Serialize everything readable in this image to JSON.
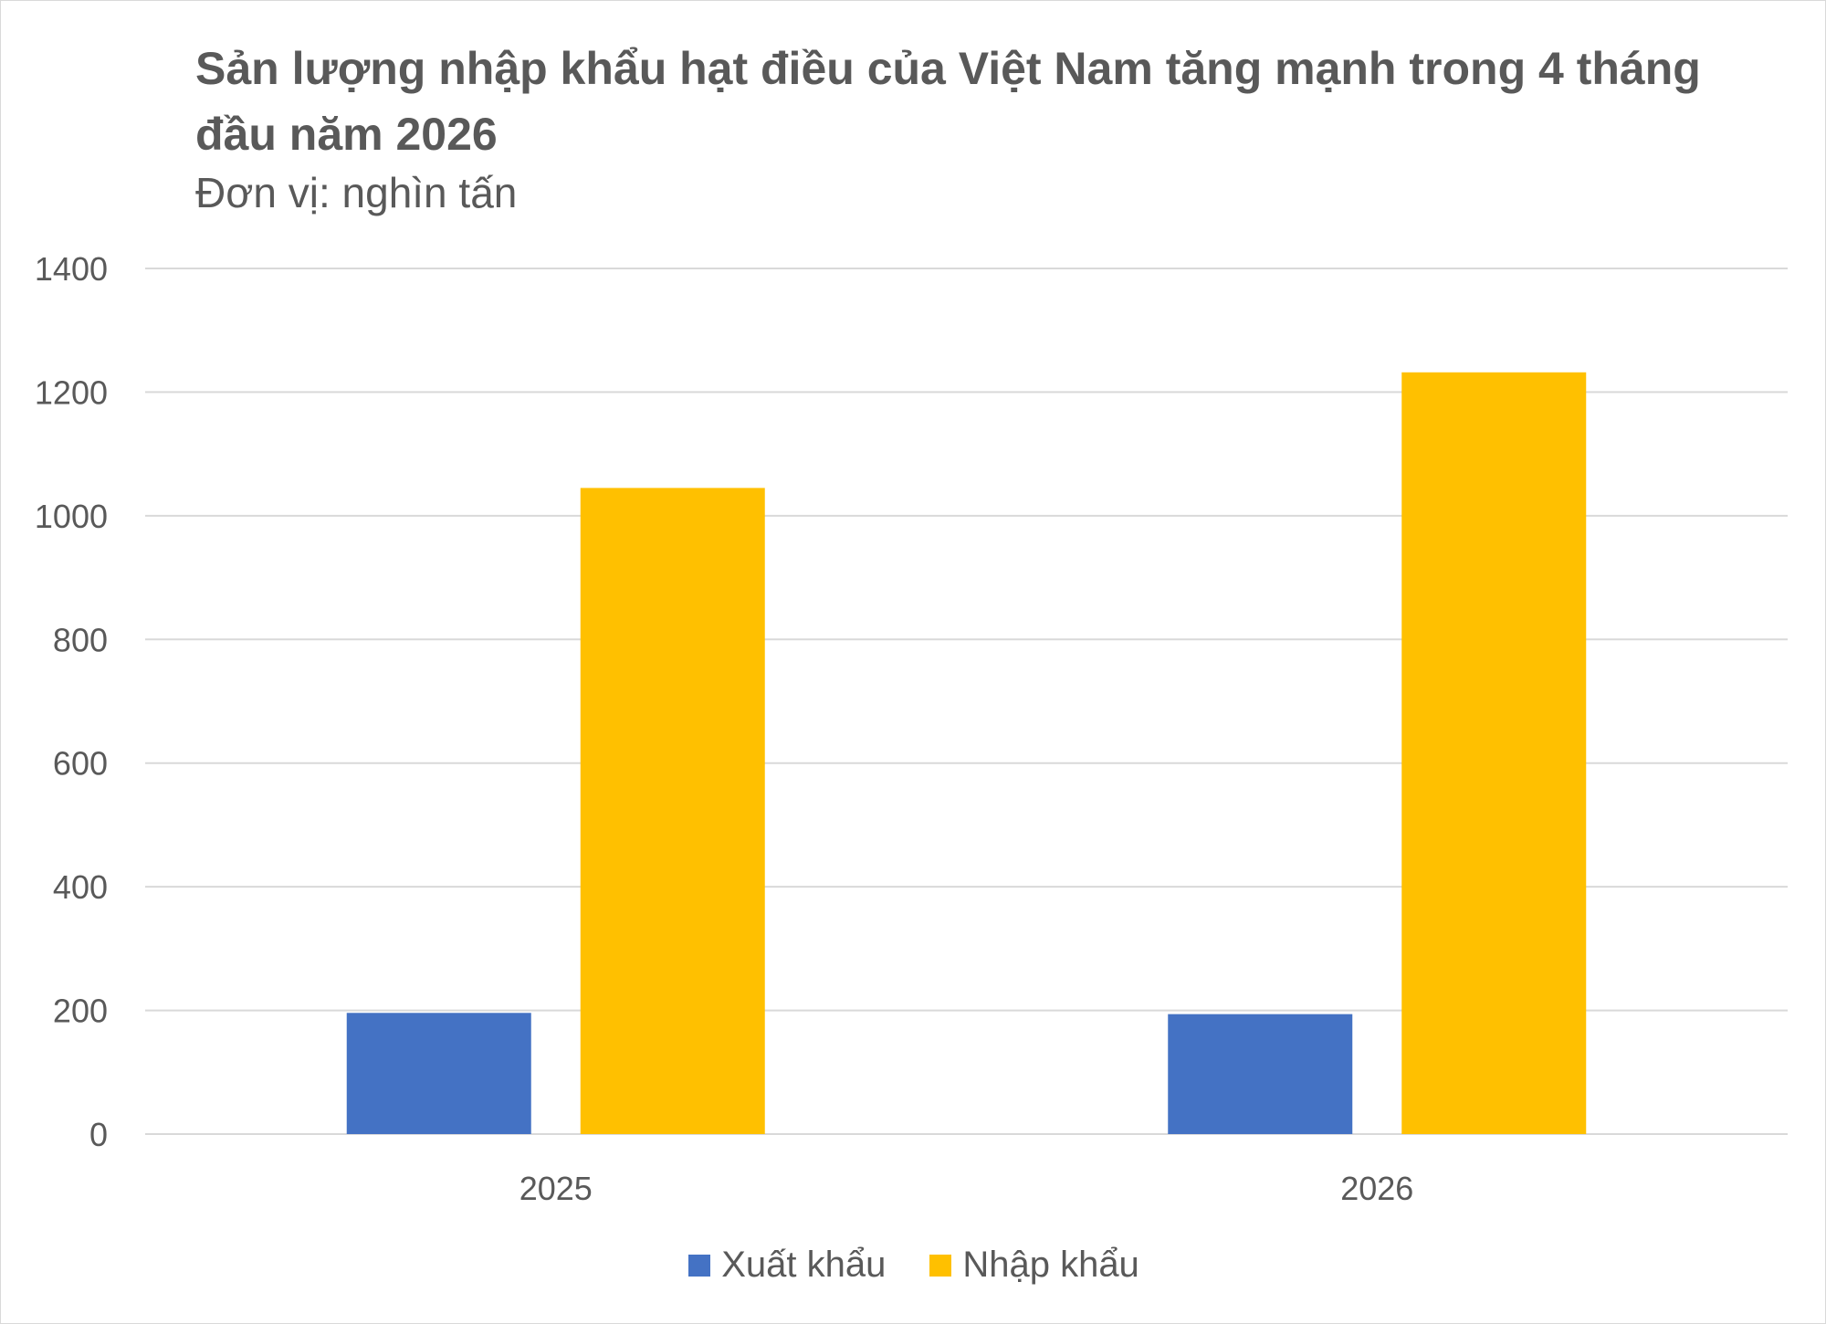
{
  "chart_data": {
    "type": "bar",
    "title": "Sản lượng nhập khẩu hạt điều của Việt Nam tăng mạnh trong 4 tháng đầu năm 2026",
    "subtitle": "Đơn vị: nghìn tấn",
    "categories": [
      "2025",
      "2026"
    ],
    "series": [
      {
        "name": "Xuất khẩu",
        "values": [
          196,
          194
        ],
        "color": "#4472C4"
      },
      {
        "name": "Nhập khẩu",
        "values": [
          1045,
          1232
        ],
        "color": "#FFC000"
      }
    ],
    "ylim": [
      0,
      1400
    ],
    "yticks": [
      "0",
      "200",
      "400",
      "600",
      "800",
      "1000",
      "1200",
      "1400"
    ],
    "grid": true,
    "legend_position": "bottom"
  }
}
